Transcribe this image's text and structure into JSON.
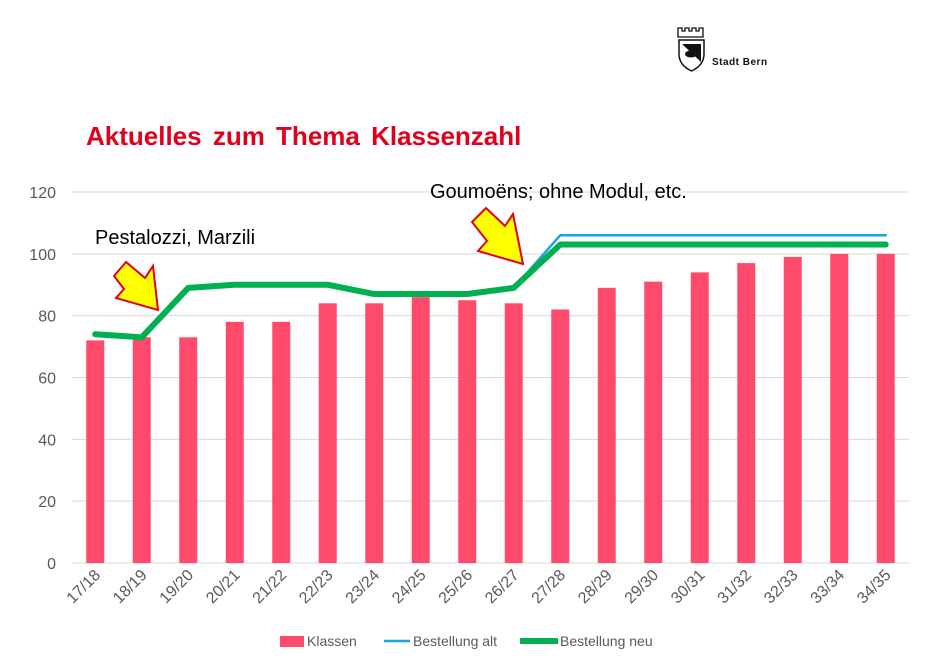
{
  "header": {
    "logo_text": "Stadt Bern",
    "title": "Aktuelles zum Thema Klassenzahl"
  },
  "annotations": [
    {
      "text": "Pestalozzi, Marzili",
      "category": "18/19"
    },
    {
      "text": "Goumoëns; ohne Modul, etc.",
      "category": "26/27"
    }
  ],
  "colors": {
    "title": "#e0001b",
    "bars": "#ff4a6b",
    "bestellung_alt": "#1aa3dd",
    "bestellung_neu": "#00b050",
    "arrow_fill": "#ffff00",
    "arrow_stroke": "#e0001b",
    "grid": "#d9d9d9"
  },
  "chart_data": {
    "type": "bar",
    "categories": [
      "17/18",
      "18/19",
      "19/20",
      "20/21",
      "21/22",
      "22/23",
      "23/24",
      "24/25",
      "25/26",
      "26/27",
      "27/28",
      "28/29",
      "29/30",
      "30/31",
      "31/32",
      "32/33",
      "33/34",
      "34/35"
    ],
    "series": [
      {
        "name": "Klassen",
        "type": "bar",
        "values": [
          72,
          73,
          73,
          78,
          78,
          84,
          84,
          86,
          85,
          84,
          82,
          89,
          91,
          94,
          97,
          99,
          100,
          100
        ]
      },
      {
        "name": "Bestellung alt",
        "type": "line",
        "values": [
          74,
          73,
          89,
          90,
          90,
          90,
          87,
          87,
          87,
          89,
          106,
          106,
          106,
          106,
          106,
          106,
          106,
          106
        ]
      },
      {
        "name": "Bestellung neu",
        "type": "line",
        "values": [
          74,
          73,
          89,
          90,
          90,
          90,
          87,
          87,
          87,
          89,
          103,
          103,
          103,
          103,
          103,
          103,
          103,
          103
        ]
      }
    ],
    "yticks": [
      "0",
      "20",
      "40",
      "60",
      "80",
      "100",
      "120"
    ],
    "ylim": [
      0,
      120
    ],
    "grid": true,
    "legend": "bottom"
  }
}
